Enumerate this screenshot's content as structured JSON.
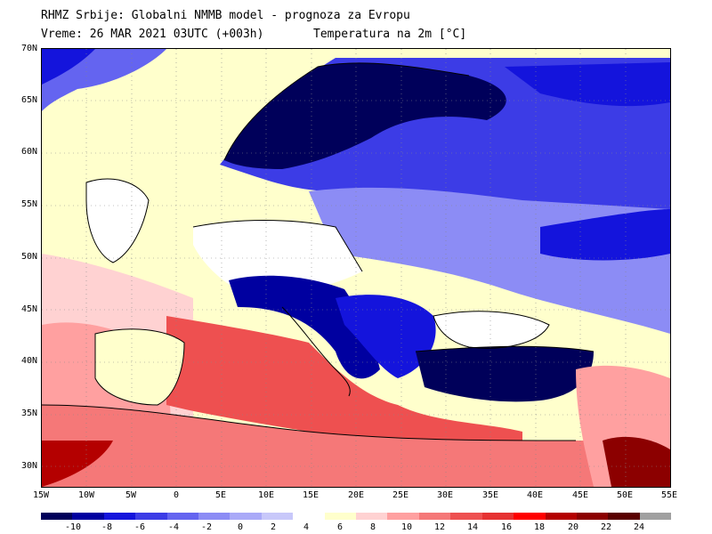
{
  "header": {
    "line1": "RHMZ Srbije: Globalni NMMB model - prognoza za Evropu",
    "line2_left": "Vreme: 26 MAR 2021 03UTC (+003h)",
    "line2_right": "Temperatura na 2m [°C]"
  },
  "axes": {
    "lat_labels": [
      "70N",
      "65N",
      "60N",
      "55N",
      "50N",
      "45N",
      "40N",
      "35N",
      "30N"
    ],
    "lon_labels": [
      "15W",
      "10W",
      "5W",
      "0",
      "5E",
      "10E",
      "15E",
      "20E",
      "25E",
      "30E",
      "35E",
      "40E",
      "45E",
      "50E",
      "55E"
    ],
    "lat_range": [
      28,
      70
    ],
    "lon_range": [
      -15,
      55
    ]
  },
  "legend": {
    "labels": [
      "-10",
      "-8",
      "-6",
      "-4",
      "-2",
      "0",
      "2",
      "4",
      "6",
      "8",
      "10",
      "12",
      "14",
      "16",
      "18",
      "20",
      "22",
      "24"
    ],
    "colors": [
      "#00005a",
      "#0000a0",
      "#1414dc",
      "#3c3ce6",
      "#6464f0",
      "#8c8cf5",
      "#aaaaf8",
      "#c8c8fa",
      "#ffffff",
      "#ffffcc",
      "#ffd2d2",
      "#ffa0a0",
      "#f57878",
      "#ee5050",
      "#e63232",
      "#ff0000",
      "#b40000",
      "#8c0000",
      "#5a0000",
      "#a0a0a0"
    ]
  },
  "map_regions": [
    {
      "name": "atlantic-north",
      "color": "#ffffcc"
    },
    {
      "name": "atlantic-west",
      "color": "#ffd2d2"
    },
    {
      "name": "scandinavia",
      "color": "#00005a"
    },
    {
      "name": "finland-russia-north",
      "color": "#3c3ce6"
    },
    {
      "name": "central-europe",
      "color": "#ffffff"
    },
    {
      "name": "eastern-europe",
      "color": "#8c8cf5"
    },
    {
      "name": "alps",
      "color": "#0000a0"
    },
    {
      "name": "balkans",
      "color": "#1414dc"
    },
    {
      "name": "black-sea",
      "color": "#ffffff"
    },
    {
      "name": "anatolia",
      "color": "#00005a"
    },
    {
      "name": "mediterranean",
      "color": "#ee5050"
    },
    {
      "name": "north-africa",
      "color": "#f57878"
    },
    {
      "name": "iberia",
      "color": "#ffffcc"
    },
    {
      "name": "middle-east",
      "color": "#ffa0a0"
    },
    {
      "name": "arabia",
      "color": "#8c0000"
    }
  ]
}
